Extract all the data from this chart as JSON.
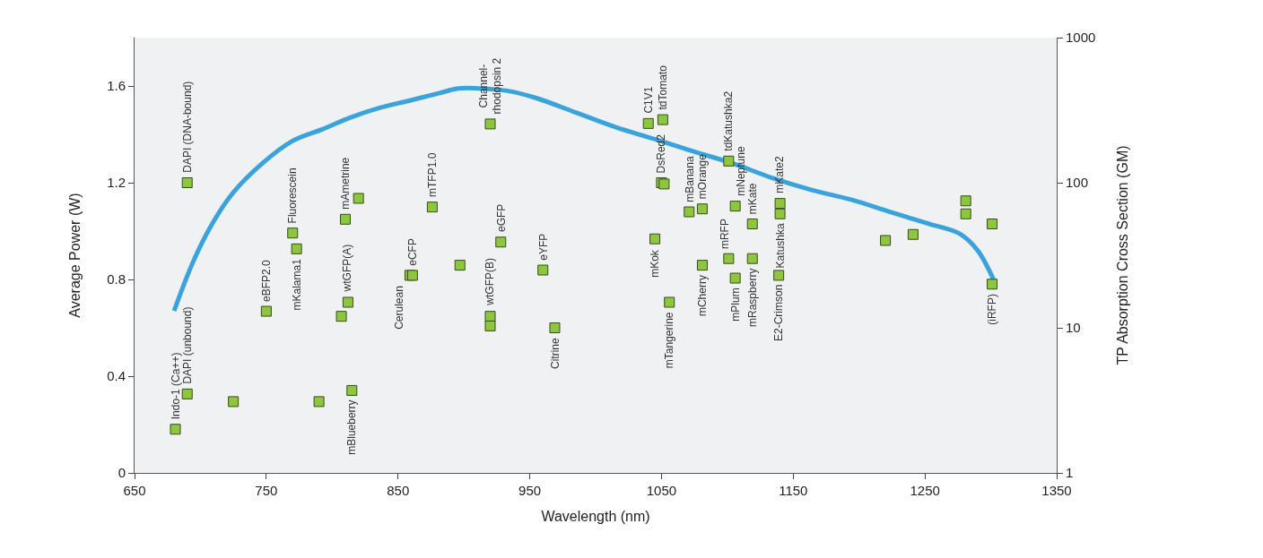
{
  "chart_data": {
    "type": "scatter",
    "xlabel": "Wavelength (nm)",
    "ylabel": "Average Power (W)",
    "y2label": "TP Absorption Cross Section (GM)",
    "xlim": [
      650,
      1350
    ],
    "xticks": [
      650,
      750,
      850,
      950,
      1050,
      1150,
      1250,
      1350
    ],
    "ylim": [
      0,
      1.8
    ],
    "yticks": [
      0,
      0.4,
      0.8,
      1.2,
      1.6
    ],
    "y2lim": [
      1,
      1000
    ],
    "y2ticks": [
      1,
      10,
      100,
      1000
    ],
    "log": "y2",
    "series": [
      {
        "type": "line",
        "color": "#3ba3dc",
        "line_style": "solid",
        "marker": "none",
        "x": [
          680,
          695,
          710,
          725,
          747,
          769,
          792,
          814,
          836,
          859,
          881,
          896,
          911,
          933,
          955,
          985,
          1015,
          1045,
          1074,
          1104,
          1134,
          1164,
          1194,
          1223,
          1253,
          1276,
          1290,
          1302
        ],
        "values": [
          0.67,
          0.88,
          1.04,
          1.16,
          1.28,
          1.37,
          1.42,
          1.47,
          1.51,
          1.54,
          1.57,
          1.59,
          1.59,
          1.58,
          1.55,
          1.49,
          1.43,
          1.38,
          1.33,
          1.28,
          1.22,
          1.17,
          1.13,
          1.08,
          1.03,
          0.99,
          0.92,
          0.8
        ]
      },
      {
        "axis": "y2",
        "color": "#8dc63f",
        "marker": "square",
        "x": [
          681,
          690,
          690,
          725,
          750,
          773,
          770,
          790,
          807,
          812,
          815,
          810,
          820,
          859,
          861,
          876,
          897,
          920,
          920,
          920,
          928,
          960,
          969,
          1045,
          1040,
          1051,
          1050,
          1052,
          1056,
          1071,
          1081,
          1081,
          1101,
          1101,
          1106,
          1106,
          1119,
          1119,
          1139,
          1140,
          1140,
          1220,
          1241,
          1281,
          1281,
          1301,
          1301
        ],
        "values": [
          2.0,
          3.5,
          100,
          3.1,
          13,
          35,
          45,
          3.1,
          12,
          15,
          3.7,
          56,
          78,
          23,
          23,
          68,
          27,
          254,
          12,
          10.3,
          39,
          25,
          10,
          41,
          256,
          272,
          100,
          98,
          15,
          63,
          66,
          27,
          141,
          30,
          22,
          69,
          52,
          30,
          23,
          72,
          61,
          40,
          44,
          75,
          61,
          52,
          20
        ],
        "value_labels": [
          "Indo-1 (Ca++)",
          "DAPI (unbound)",
          "DAPI (DNA-bound)",
          null,
          "eBFP2.0",
          "mKalama1",
          "Fluorescein",
          null,
          null,
          "wtGFP(A)",
          "mBlueberry",
          "mAmetrine",
          null,
          "Cerulean",
          "eCFP",
          "mTFP1.0",
          null,
          "Channel-\nrhodopsin 2",
          "wtGFP(B)",
          null,
          "eGFP",
          "eYFP",
          "Citrine",
          "mKok",
          "C1V1",
          "tdTomato",
          "DsRed2",
          null,
          "mTangerine",
          "mBanana",
          "mOrange",
          "mCherry",
          "tdKatushka2",
          "mRFP",
          "mPlum",
          "mNeptune",
          "mKate",
          "mRaspberry",
          "E2-Crimson",
          "mKate2",
          "Katushka",
          null,
          null,
          null,
          null,
          null,
          "(iRFP)"
        ]
      }
    ]
  }
}
